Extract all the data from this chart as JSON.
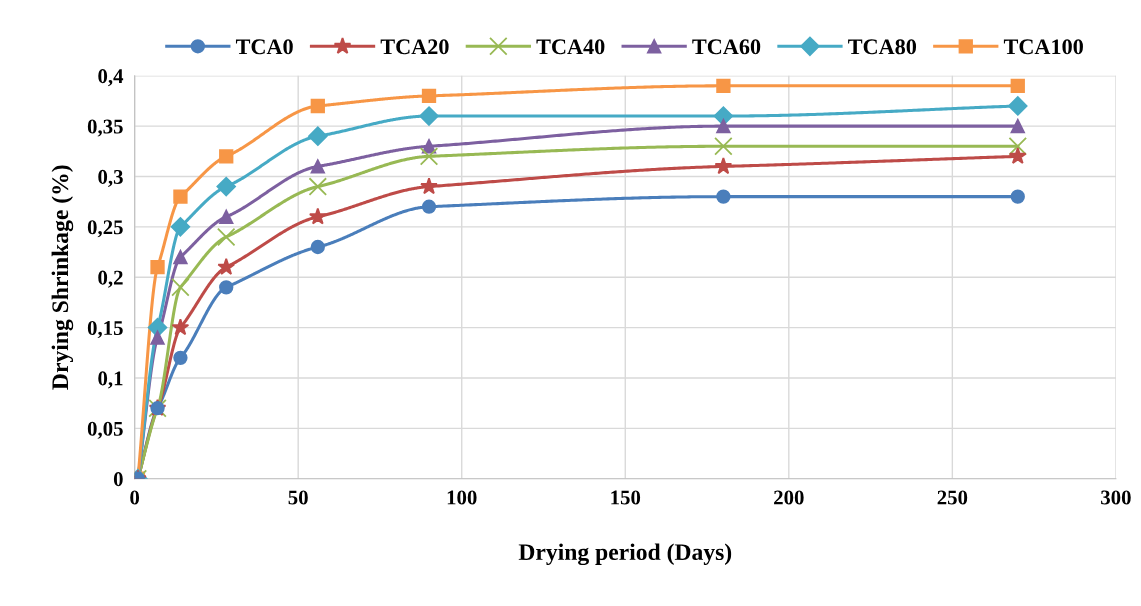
{
  "chart_data": {
    "type": "line",
    "xlabel": "Drying period (Days)",
    "ylabel": "Drying Shrinkage (%)",
    "x": [
      1,
      7,
      14,
      28,
      56,
      90,
      180,
      270
    ],
    "series": [
      {
        "name": "TCA0",
        "color": "#4a7ebb",
        "marker": "circle",
        "values": [
          0,
          0.07,
          0.12,
          0.19,
          0.23,
          0.27,
          0.28,
          0.28
        ]
      },
      {
        "name": "TCA20",
        "color": "#be4b48",
        "marker": "star",
        "values": [
          0,
          0.07,
          0.15,
          0.21,
          0.26,
          0.29,
          0.31,
          0.32
        ]
      },
      {
        "name": "TCA40",
        "color": "#98b954",
        "marker": "cross",
        "values": [
          0,
          0.07,
          0.19,
          0.24,
          0.29,
          0.32,
          0.33,
          0.33
        ]
      },
      {
        "name": "TCA60",
        "color": "#7d60a0",
        "marker": "triangle",
        "values": [
          0,
          0.14,
          0.22,
          0.26,
          0.31,
          0.33,
          0.35,
          0.35
        ]
      },
      {
        "name": "TCA80",
        "color": "#46aac5",
        "marker": "diamond",
        "values": [
          0,
          0.15,
          0.25,
          0.29,
          0.34,
          0.36,
          0.36,
          0.37
        ]
      },
      {
        "name": "TCA100",
        "color": "#f79646",
        "marker": "square",
        "values": [
          0,
          0.21,
          0.28,
          0.32,
          0.37,
          0.38,
          0.39,
          0.39
        ]
      }
    ],
    "xlim": [
      0,
      300
    ],
    "xticks": [
      0,
      50,
      100,
      150,
      200,
      250,
      300
    ],
    "ylim": [
      0,
      0.4
    ],
    "yticks": [
      {
        "value": 0,
        "label": "0"
      },
      {
        "value": 0.05,
        "label": "0,05"
      },
      {
        "value": 0.1,
        "label": "0,1"
      },
      {
        "value": 0.15,
        "label": "0,15"
      },
      {
        "value": 0.2,
        "label": "0,2"
      },
      {
        "value": 0.25,
        "label": "0,25"
      },
      {
        "value": 0.3,
        "label": "0,3"
      },
      {
        "value": 0.35,
        "label": "0,35"
      },
      {
        "value": 0.4,
        "label": "0,4"
      }
    ],
    "grid": true,
    "legend": "top",
    "line_style": "solid"
  }
}
